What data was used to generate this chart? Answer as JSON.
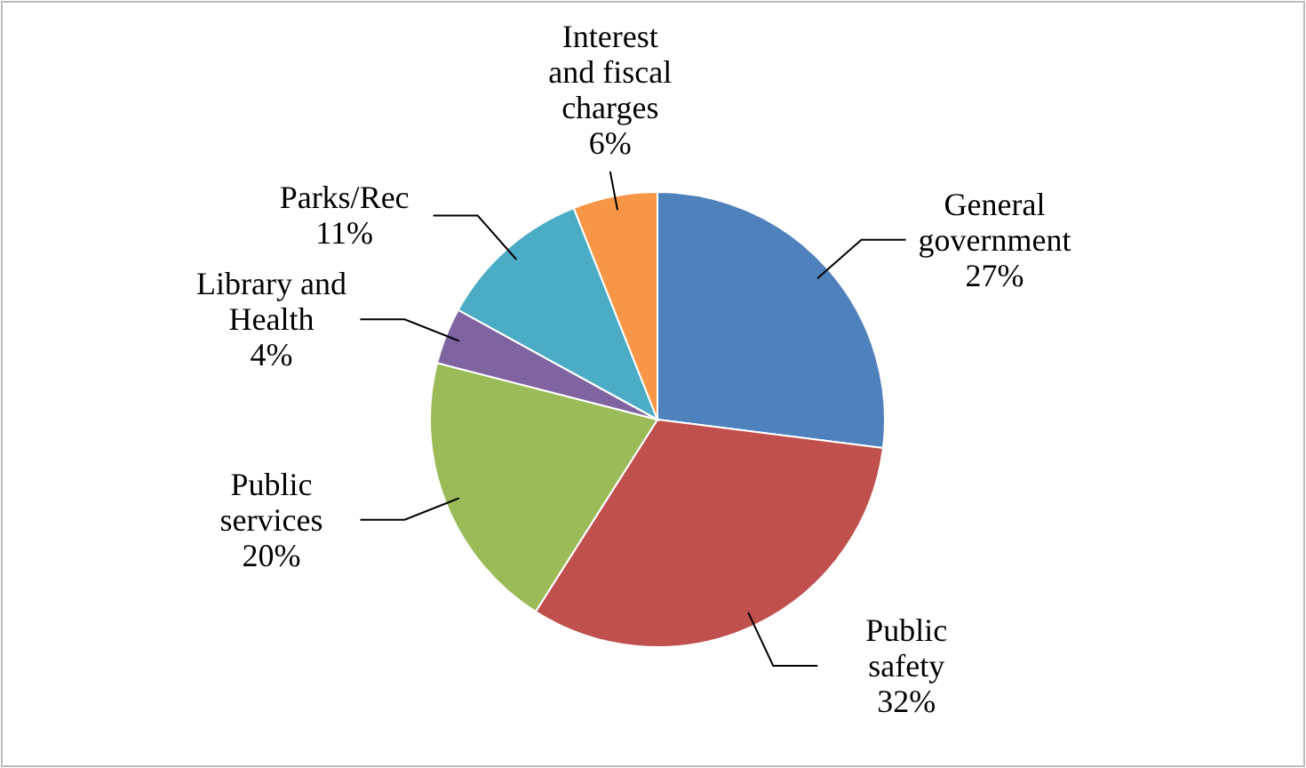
{
  "chart_data": {
    "type": "pie",
    "categories": [
      "General government",
      "Public safety",
      "Public services",
      "Library and Health",
      "Parks/Rec",
      "Interest and fiscal charges"
    ],
    "values": [
      27,
      32,
      20,
      4,
      11,
      6
    ],
    "value_labels": [
      "27%",
      "32%",
      "20%",
      "4%",
      "11%",
      "6%"
    ],
    "colors": [
      "#4f81bd",
      "#c0504d",
      "#9bbb59",
      "#8064a2",
      "#4bacc6",
      "#f79646"
    ]
  }
}
